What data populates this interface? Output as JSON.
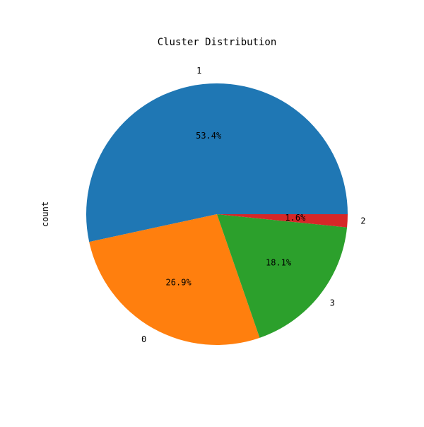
{
  "chart_data": {
    "type": "pie",
    "title": "Cluster Distribution",
    "ylabel": "count",
    "xlabel": "",
    "slices": [
      {
        "label": "1",
        "percent": 53.4,
        "percent_label": "53.4%",
        "color": "#1f77b4"
      },
      {
        "label": "0",
        "percent": 26.9,
        "percent_label": "26.9%",
        "color": "#ff7f0e"
      },
      {
        "label": "3",
        "percent": 18.1,
        "percent_label": "18.1%",
        "color": "#2ca02c"
      },
      {
        "label": "2",
        "percent": 1.6,
        "percent_label": "1.6%",
        "color": "#d62728"
      }
    ],
    "start_angle_deg": 0,
    "direction": "counterclockwise",
    "legend": "none"
  }
}
